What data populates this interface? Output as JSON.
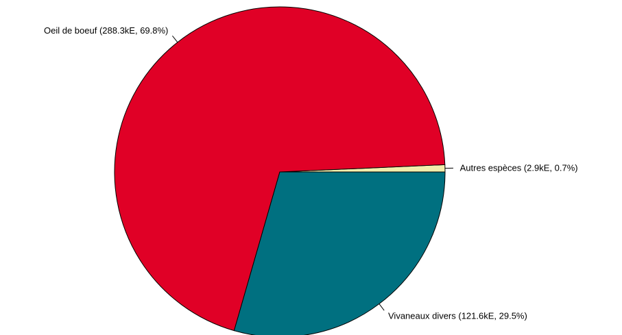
{
  "chart_data": {
    "type": "pie",
    "title": "",
    "slices": [
      {
        "label": "Autres espèces (2.9kE, 0.7%)",
        "value": 2.9,
        "percent": 0.7,
        "color": "#F2EEAC"
      },
      {
        "label": "Oeil de boeuf (288.3kE, 69.8%)",
        "value": 288.3,
        "percent": 69.8,
        "color": "#E00026"
      },
      {
        "label": "Vivaneaux divers (121.6kE, 29.5%)",
        "value": 121.6,
        "percent": 29.5,
        "color": "#007080"
      }
    ],
    "start_angle_deg": 0,
    "direction": "counterclockwise",
    "border_color": "#000000"
  }
}
